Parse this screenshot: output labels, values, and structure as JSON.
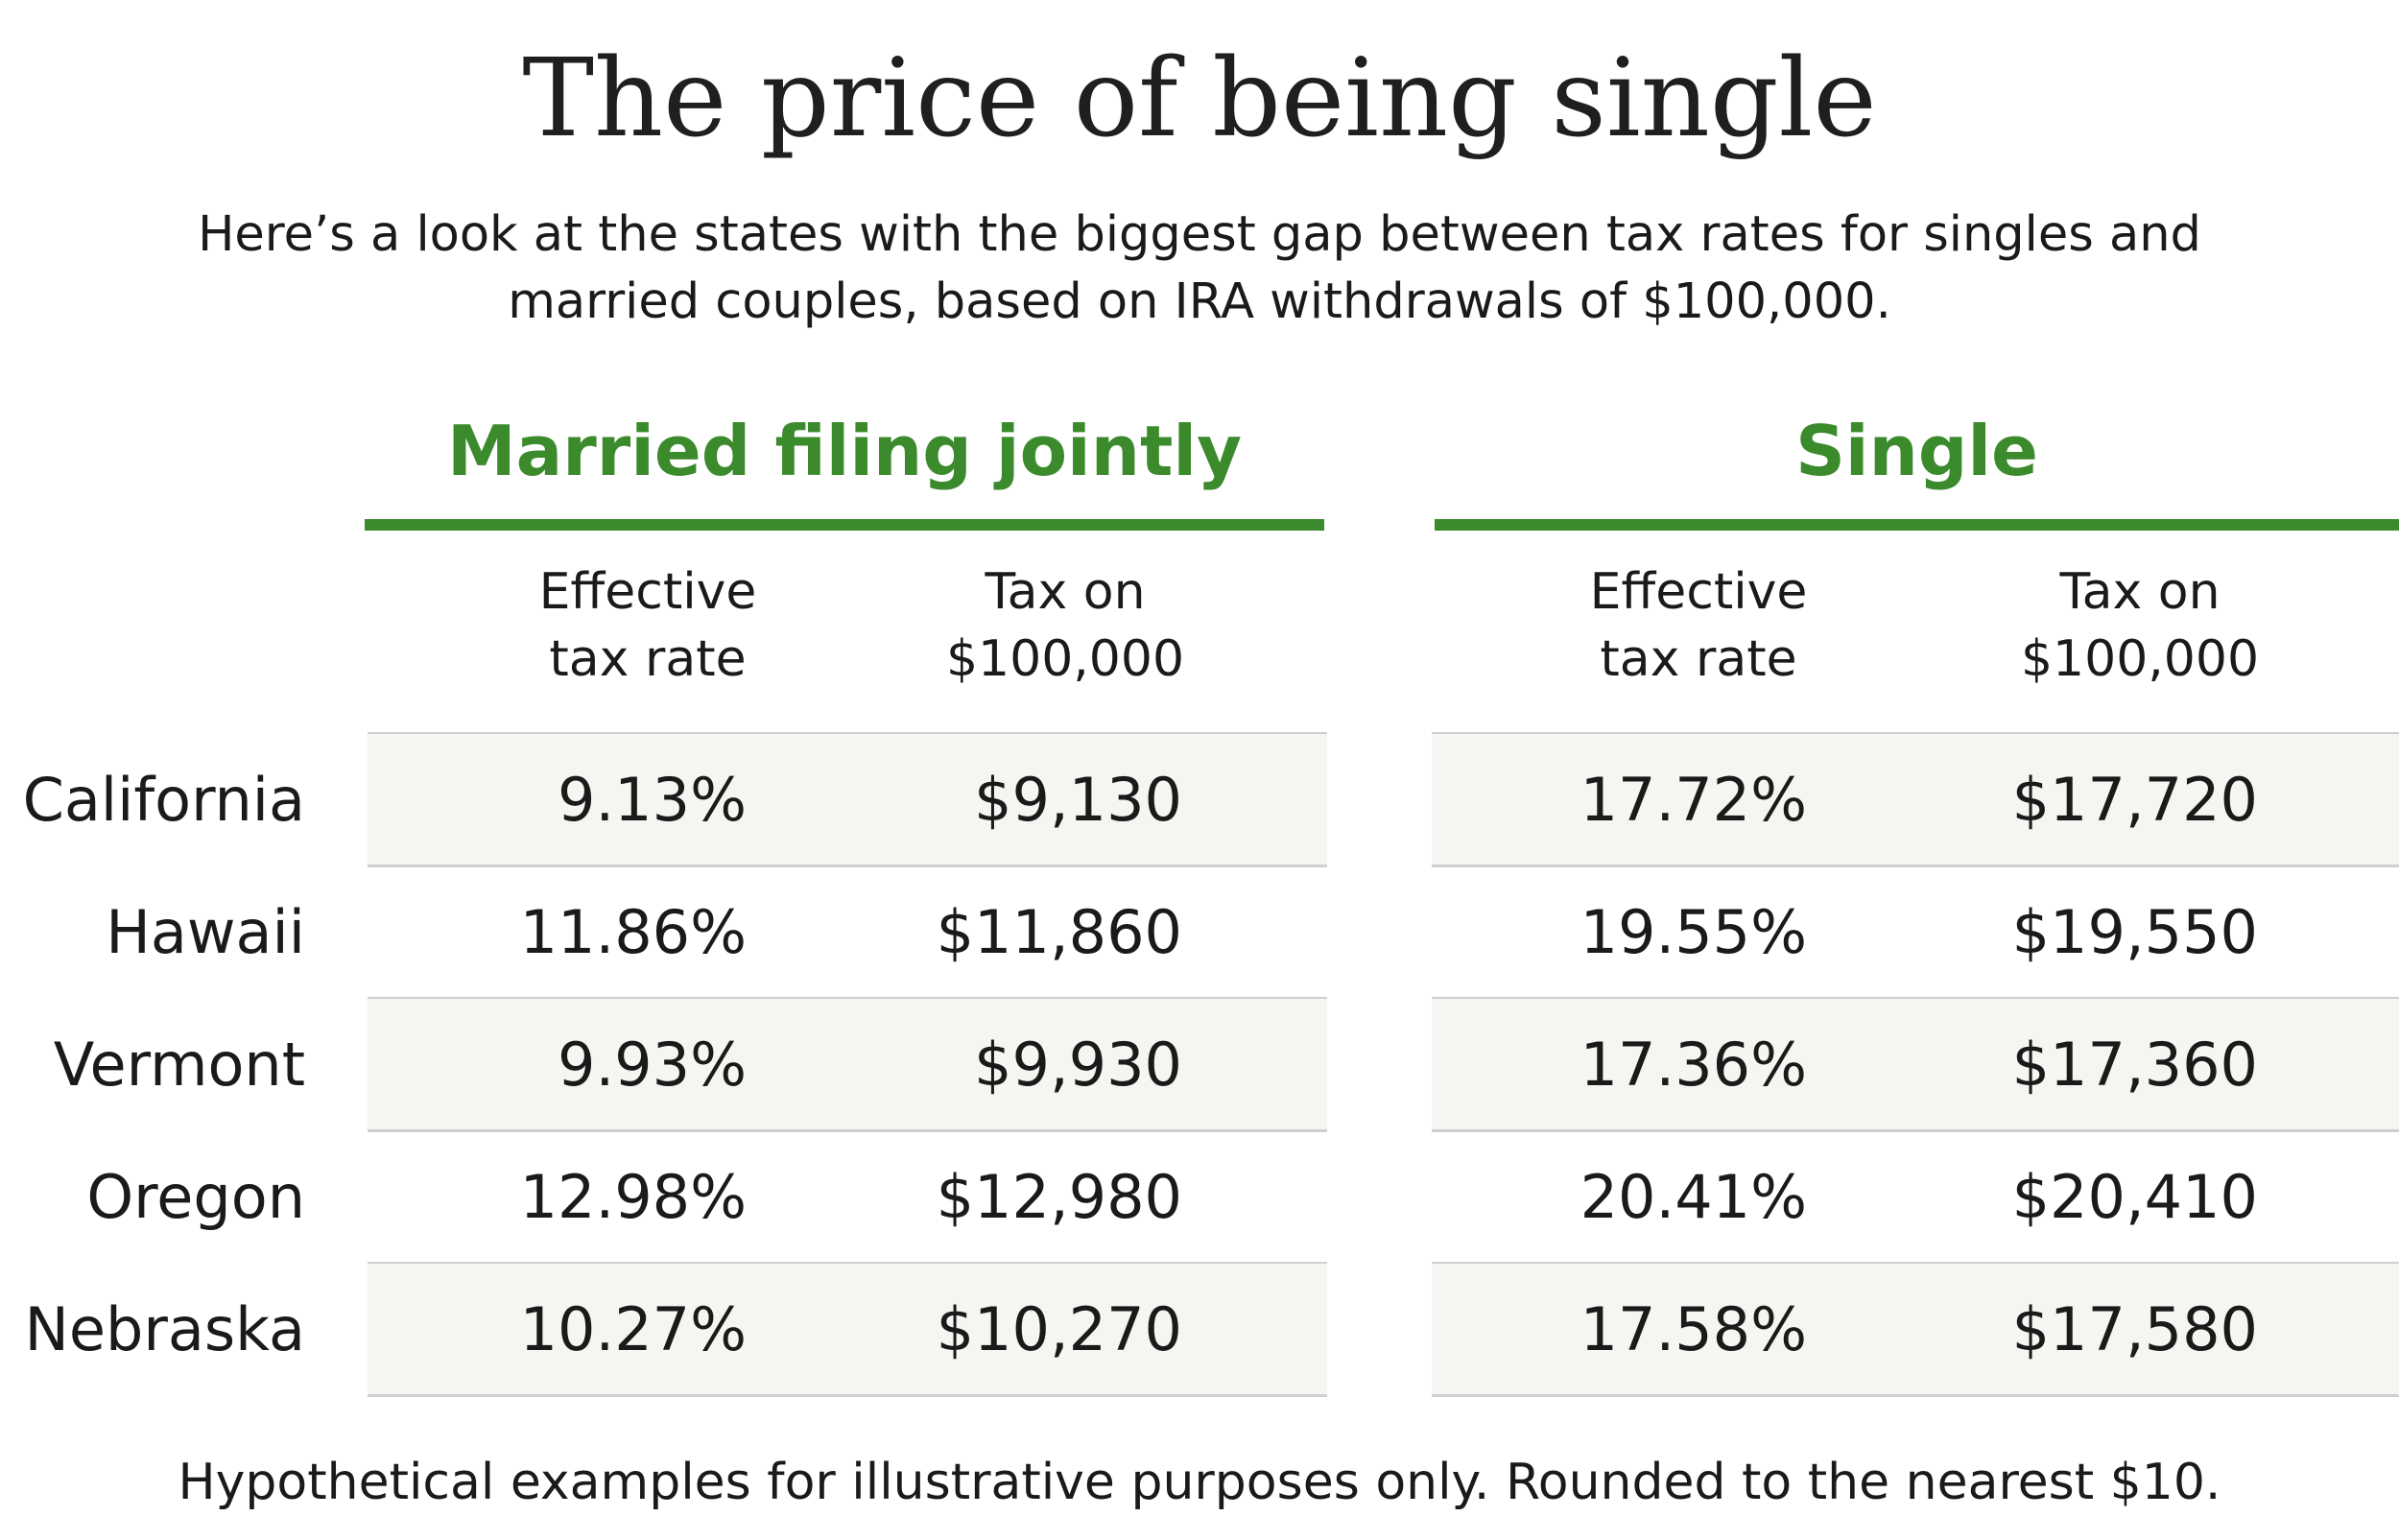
{
  "chart_data": {
    "type": "table",
    "title": "The price of being single",
    "subtitle_lines": [
      "Here’s a look at the states with the biggest gap between tax rates for singles and",
      "married couples, based on IRA withdrawals of $100,000."
    ],
    "groups": [
      {
        "label": "Married filing jointly",
        "columns": [
          [
            "Effective",
            "tax rate"
          ],
          [
            "Tax on",
            "$100,000"
          ]
        ]
      },
      {
        "label": "Single",
        "columns": [
          [
            "Effective",
            "tax rate"
          ],
          [
            "Tax on",
            "$100,000"
          ]
        ]
      }
    ],
    "rows": [
      {
        "state": "California",
        "married_rate": "9.13%",
        "married_tax": "$9,130",
        "single_rate": "17.72%",
        "single_tax": "$17,720"
      },
      {
        "state": "Hawaii",
        "married_rate": "11.86%",
        "married_tax": "$11,860",
        "single_rate": "19.55%",
        "single_tax": "$19,550"
      },
      {
        "state": "Vermont",
        "married_rate": "9.93%",
        "married_tax": "$9,930",
        "single_rate": "17.36%",
        "single_tax": "$17,360"
      },
      {
        "state": "Oregon",
        "married_rate": "12.98%",
        "married_tax": "$12,980",
        "single_rate": "20.41%",
        "single_tax": "$20,410"
      },
      {
        "state": "Nebraska",
        "married_rate": "10.27%",
        "married_tax": "$10,270",
        "single_rate": "17.58%",
        "single_tax": "$17,580"
      }
    ],
    "footnote": "Hypothetical examples for illustrative purposes only. Rounded to the nearest $10.",
    "colors": {
      "accent": "#3b8a2c",
      "row_shade": "#f6f5f2",
      "rule": "#cfcfcf",
      "text": "#1a1a1a"
    }
  }
}
